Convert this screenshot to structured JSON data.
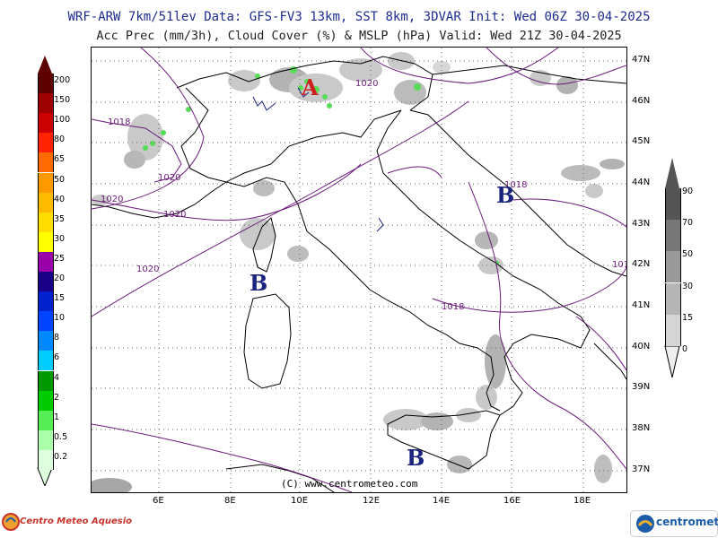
{
  "header": {
    "line1": "WRF-ARW 7km/51lev  Data: GFS-FV3 13km, SST 8km, 3DVAR  Init: Wed 06Z 30-04-2025",
    "line2": "Acc Prec (mm/3h), Cloud Cover (%) & MSLP (hPa)  Valid: Wed 21Z 30-04-2025"
  },
  "map": {
    "lat_labels": [
      "47N",
      "46N",
      "45N",
      "44N",
      "43N",
      "42N",
      "41N",
      "40N",
      "39N",
      "38N",
      "37N"
    ],
    "lon_labels": [
      "6E",
      "8E",
      "10E",
      "12E",
      "14E",
      "16E",
      "18E"
    ],
    "pressure_labels": [
      "1018",
      "1020",
      "1020",
      "1020",
      "1020",
      "1020",
      "1018",
      "1018",
      "101"
    ],
    "pressure_centers": [
      "A",
      "B",
      "B",
      "B"
    ],
    "credit": "(C) www.centrometeo.com",
    "colors": {
      "coast": "#000000",
      "isobar": "#6a1b7a",
      "grid": "#555555",
      "high": "#cc2020",
      "low": "#1a237e",
      "cloud": "#b0b0b0",
      "rain": "#44dd44"
    }
  },
  "precip_legend": {
    "values": [
      "200",
      "150",
      "100",
      "80",
      "65",
      "50",
      "40",
      "35",
      "30",
      "25",
      "20",
      "15",
      "10",
      "8",
      "6",
      "4",
      "2",
      "1",
      "0.5",
      "0.2"
    ],
    "colors": [
      "#5c0000",
      "#9c0000",
      "#cc0000",
      "#ff2200",
      "#ff6a00",
      "#ff9900",
      "#ffbb00",
      "#ffdd00",
      "#ffff00",
      "#9900aa",
      "#1a0088",
      "#0022cc",
      "#0044ff",
      "#0088ff",
      "#00ccff",
      "#009900",
      "#00cc00",
      "#55ee55",
      "#aaffaa",
      "#ddffdd"
    ]
  },
  "cloud_legend": {
    "values": [
      "90",
      "70",
      "50",
      "30",
      "15",
      "0"
    ],
    "colors": [
      "#555555",
      "#777777",
      "#999999",
      "#b5b5b5",
      "#d5d5d5",
      "#eeeeee"
    ]
  },
  "logos": {
    "left": "Centro Meteo Aquesio",
    "right": "centrometeo"
  }
}
